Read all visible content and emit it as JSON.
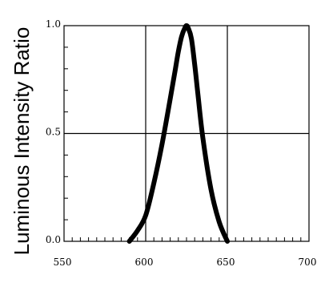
{
  "chart_data": {
    "type": "line",
    "title": "",
    "xlabel": "",
    "ylabel": "Luminous Intensity Ratio",
    "xlim": [
      550,
      700
    ],
    "ylim": [
      0.0,
      1.0
    ],
    "x_ticks": [
      "550",
      "600",
      "650",
      "700"
    ],
    "y_ticks": [
      "0.0",
      "0.5",
      "1.0"
    ],
    "grid": true,
    "series": [
      {
        "name": "",
        "x": [
          590,
          595,
          600,
          605,
          610,
          615,
          618,
          620,
          622,
          624,
          625,
          626,
          628,
          630,
          632,
          635,
          640,
          645,
          650
        ],
        "y": [
          0.0,
          0.05,
          0.12,
          0.27,
          0.45,
          0.66,
          0.79,
          0.88,
          0.95,
          0.99,
          1.0,
          0.99,
          0.94,
          0.82,
          0.68,
          0.48,
          0.24,
          0.09,
          0.0
        ]
      }
    ]
  }
}
